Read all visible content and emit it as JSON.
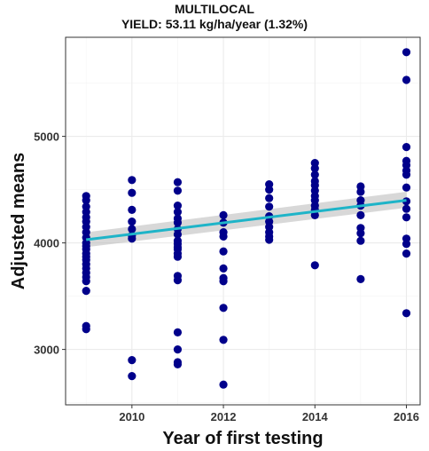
{
  "chart_data": {
    "type": "scatter",
    "title": "MULTILOCAL",
    "subtitle": "YIELD: 53.11 kg/ha/year (1.32%)",
    "xlabel": "Year of first testing",
    "ylabel": "Adjusted means",
    "xlim": [
      2008.55,
      2016.3
    ],
    "ylim": [
      2480,
      5930
    ],
    "xticks": [
      2010,
      2012,
      2014,
      2016
    ],
    "yticks": [
      3000,
      4000,
      5000
    ],
    "grid": true,
    "colors": {
      "points": "#00008B",
      "fit": "#1EB4C8",
      "band": "#BEBEBE",
      "panel_border": "#333333",
      "grid": "#EBEBEB"
    },
    "series": [
      {
        "type": "points",
        "x": [
          2009,
          2009,
          2009,
          2009,
          2009,
          2009,
          2009,
          2009,
          2009,
          2009,
          2009,
          2009,
          2009,
          2009,
          2009,
          2009,
          2009,
          2009,
          2009,
          2009,
          2009,
          2009,
          2009,
          2010,
          2010,
          2010,
          2010,
          2010,
          2010,
          2010,
          2010,
          2010,
          2011,
          2011,
          2011,
          2011,
          2011,
          2011,
          2011,
          2011,
          2011,
          2011,
          2011,
          2011,
          2011,
          2011,
          2011,
          2011,
          2011,
          2011,
          2011,
          2011,
          2012,
          2012,
          2012,
          2012,
          2012,
          2012,
          2012,
          2012,
          2012,
          2012,
          2012,
          2013,
          2013,
          2013,
          2013,
          2013,
          2013,
          2013,
          2013,
          2013,
          2013,
          2014,
          2014,
          2014,
          2014,
          2014,
          2014,
          2014,
          2014,
          2014,
          2014,
          2014,
          2014,
          2015,
          2015,
          2015,
          2015,
          2015,
          2015,
          2015,
          2015,
          2015,
          2016,
          2016,
          2016,
          2016,
          2016,
          2016,
          2016,
          2016,
          2016,
          2016,
          2016,
          2016,
          2016,
          2016,
          2016
        ],
        "y": [
          4440,
          4400,
          4340,
          4290,
          4240,
          4200,
          4150,
          4100,
          4050,
          4000,
          3970,
          3940,
          3900,
          3870,
          3840,
          3800,
          3760,
          3720,
          3680,
          3640,
          3550,
          3220,
          3190,
          4590,
          4470,
          4310,
          4200,
          4130,
          4070,
          4040,
          2900,
          2750,
          4570,
          4490,
          4350,
          4290,
          4230,
          4190,
          4130,
          4080,
          4020,
          3990,
          3960,
          3940,
          3900,
          3870,
          3690,
          3650,
          3160,
          3000,
          2880,
          2860,
          2670,
          4260,
          4190,
          4100,
          4060,
          3920,
          3760,
          3670,
          3640,
          3390,
          3090,
          4550,
          4500,
          4420,
          4340,
          4250,
          4200,
          4150,
          4100,
          4060,
          4030,
          4750,
          4700,
          4640,
          4580,
          4540,
          4490,
          4440,
          4400,
          4350,
          4310,
          4260,
          3790,
          4530,
          4480,
          4400,
          4350,
          4260,
          4140,
          4090,
          4020,
          3660,
          5790,
          5530,
          4900,
          4770,
          4730,
          4680,
          4640,
          4520,
          4390,
          4320,
          4240,
          4040,
          3990,
          3900,
          3340
        ]
      },
      {
        "type": "fit",
        "x": [
          2009,
          2016
        ],
        "y": [
          4030,
          4400
        ],
        "ci_lower": [
          3960,
          4330
        ],
        "ci_upper": [
          4100,
          4480
        ]
      }
    ]
  }
}
